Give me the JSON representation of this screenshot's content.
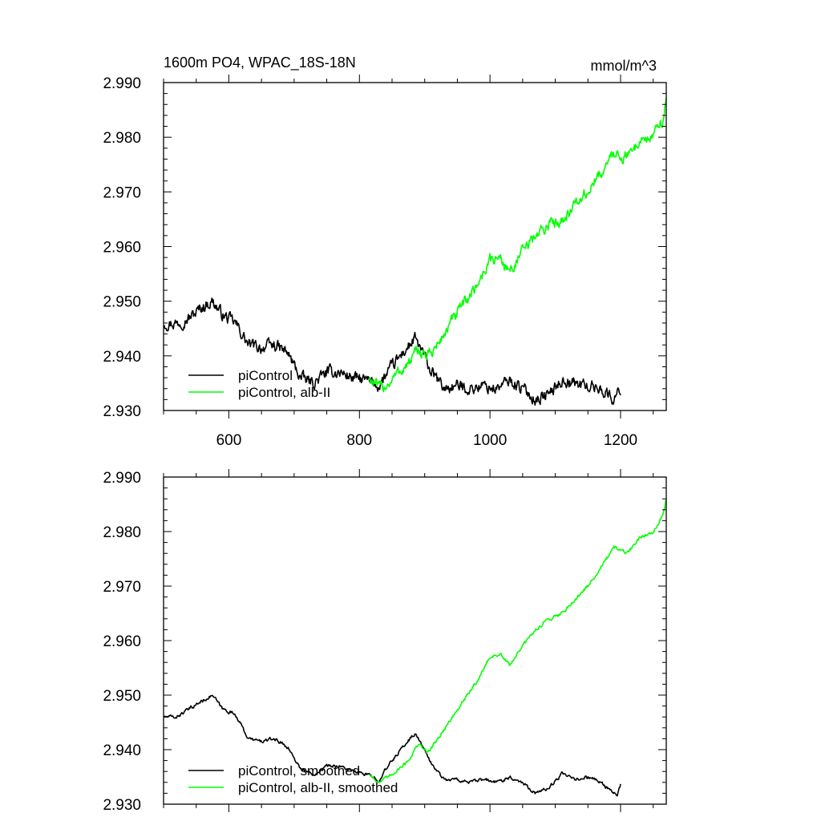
{
  "chart_data": [
    {
      "type": "line",
      "title": "1600m PO4, WPAC_18S-18N",
      "units": "mmol/m^3",
      "xlim": [
        500,
        1270
      ],
      "ylim": [
        2.93,
        2.99
      ],
      "x_ticks": [
        600,
        800,
        1000,
        1200
      ],
      "x_tick_labels": [
        "600",
        "800",
        "1000",
        "1200"
      ],
      "y_ticks": [
        2.93,
        2.94,
        2.95,
        2.96,
        2.97,
        2.98,
        2.99
      ],
      "y_tick_labels": [
        "2.930",
        "2.940",
        "2.950",
        "2.960",
        "2.970",
        "2.980",
        "2.990"
      ],
      "legend_position": "bottom-left",
      "grid": false,
      "series": [
        {
          "name": "piControl",
          "color": "#000000",
          "noise": 0.0009,
          "x": [
            501,
            520,
            540,
            560,
            575,
            590,
            610,
            630,
            650,
            670,
            690,
            710,
            730,
            750,
            770,
            790,
            810,
            830,
            850,
            870,
            885,
            895,
            910,
            930,
            950,
            970,
            990,
            1010,
            1030,
            1050,
            1070,
            1090,
            1110,
            1130,
            1150,
            1170,
            1190,
            1200
          ],
          "values": [
            2.946,
            2.946,
            2.947,
            2.949,
            2.95,
            2.9475,
            2.946,
            2.942,
            2.9415,
            2.942,
            2.9405,
            2.936,
            2.935,
            2.937,
            2.937,
            2.936,
            2.9355,
            2.9345,
            2.938,
            2.941,
            2.943,
            2.941,
            2.937,
            2.934,
            2.9345,
            2.934,
            2.9345,
            2.934,
            2.9355,
            2.934,
            2.932,
            2.933,
            2.9355,
            2.935,
            2.9345,
            2.934,
            2.932,
            2.934
          ]
        },
        {
          "name": "piControl, alb-II",
          "color": "#00ff00",
          "noise": 0.0009,
          "x": [
            815,
            830,
            845,
            860,
            875,
            890,
            905,
            920,
            940,
            960,
            980,
            1000,
            1015,
            1030,
            1050,
            1070,
            1090,
            1110,
            1130,
            1150,
            1170,
            1190,
            1210,
            1230,
            1250,
            1265,
            1270
          ],
          "values": [
            2.936,
            2.934,
            2.935,
            2.937,
            2.9385,
            2.941,
            2.94,
            2.942,
            2.946,
            2.9495,
            2.953,
            2.9575,
            2.958,
            2.9555,
            2.959,
            2.962,
            2.964,
            2.965,
            2.9675,
            2.97,
            2.9735,
            2.977,
            2.9765,
            2.9795,
            2.98,
            2.9835,
            2.9865
          ]
        }
      ]
    },
    {
      "type": "line",
      "xlim": [
        500,
        1270
      ],
      "ylim": [
        2.93,
        2.99
      ],
      "x_ticks": [
        600,
        800,
        1000,
        1200
      ],
      "y_ticks": [
        2.93,
        2.94,
        2.95,
        2.96,
        2.97,
        2.98,
        2.99
      ],
      "y_tick_labels": [
        "2.930",
        "2.940",
        "2.950",
        "2.960",
        "2.970",
        "2.980",
        "2.990"
      ],
      "legend_position": "bottom-left",
      "grid": false,
      "series": [
        {
          "name": "piControl, smoothed",
          "color": "#000000",
          "noise": 0.00025,
          "x": [
            501,
            520,
            540,
            560,
            575,
            590,
            610,
            630,
            650,
            670,
            690,
            710,
            730,
            750,
            770,
            790,
            810,
            830,
            850,
            870,
            885,
            895,
            910,
            930,
            950,
            970,
            990,
            1010,
            1030,
            1050,
            1070,
            1090,
            1110,
            1130,
            1150,
            1170,
            1185,
            1195,
            1200
          ],
          "values": [
            2.946,
            2.946,
            2.9475,
            2.949,
            2.95,
            2.9475,
            2.9465,
            2.942,
            2.9415,
            2.942,
            2.9405,
            2.9365,
            2.9355,
            2.937,
            2.937,
            2.936,
            2.9355,
            2.9345,
            2.938,
            2.941,
            2.943,
            2.941,
            2.9375,
            2.9345,
            2.9345,
            2.934,
            2.9345,
            2.934,
            2.935,
            2.934,
            2.932,
            2.933,
            2.9355,
            2.9345,
            2.935,
            2.934,
            2.9325,
            2.9315,
            2.9335
          ]
        },
        {
          "name": "piControl, alb-II, smoothed",
          "color": "#00ff00",
          "noise": 0.00025,
          "x": [
            815,
            830,
            845,
            860,
            875,
            890,
            905,
            920,
            940,
            960,
            980,
            1000,
            1015,
            1030,
            1050,
            1070,
            1090,
            1110,
            1130,
            1150,
            1170,
            1190,
            1210,
            1230,
            1250,
            1265,
            1270
          ],
          "values": [
            2.9355,
            2.934,
            2.935,
            2.9365,
            2.938,
            2.941,
            2.9395,
            2.942,
            2.9455,
            2.949,
            2.9525,
            2.957,
            2.9575,
            2.9555,
            2.959,
            2.962,
            2.964,
            2.965,
            2.9675,
            2.97,
            2.9735,
            2.977,
            2.976,
            2.979,
            2.98,
            2.983,
            2.986
          ]
        }
      ]
    }
  ]
}
